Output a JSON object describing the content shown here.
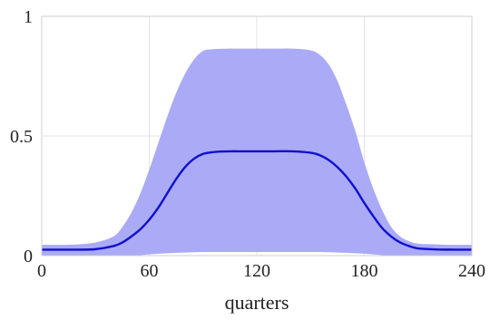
{
  "chart_data": {
    "type": "area",
    "title": "",
    "xlabel": "quarters",
    "ylabel": "",
    "xlim": [
      0,
      240
    ],
    "ylim": [
      0,
      1
    ],
    "x_ticks": [
      "0",
      "60",
      "120",
      "180",
      "240"
    ],
    "y_ticks": [
      "0",
      "0.5",
      "1"
    ],
    "grid": true,
    "colors": {
      "line": "#1010cc",
      "band": "#aaaaf6",
      "grid": "#e3e3e3",
      "axes": "#cfcfcf"
    },
    "x": [
      0,
      10,
      20,
      30,
      40,
      45,
      50,
      55,
      60,
      65,
      70,
      75,
      80,
      85,
      90,
      95,
      100,
      105,
      110,
      120,
      130,
      140,
      150,
      155,
      160,
      165,
      170,
      175,
      180,
      185,
      190,
      195,
      200,
      205,
      210,
      220,
      230,
      240
    ],
    "series": [
      {
        "role": "line",
        "values": [
          0.025,
          0.025,
          0.025,
          0.027,
          0.04,
          0.055,
          0.08,
          0.11,
          0.15,
          0.2,
          0.26,
          0.32,
          0.37,
          0.405,
          0.425,
          0.432,
          0.435,
          0.436,
          0.436,
          0.436,
          0.436,
          0.436,
          0.43,
          0.42,
          0.4,
          0.37,
          0.33,
          0.28,
          0.22,
          0.165,
          0.115,
          0.08,
          0.055,
          0.04,
          0.03,
          0.026,
          0.025,
          0.025
        ]
      },
      {
        "role": "band-upper",
        "values": [
          0.045,
          0.045,
          0.047,
          0.055,
          0.08,
          0.12,
          0.18,
          0.26,
          0.36,
          0.47,
          0.58,
          0.68,
          0.76,
          0.82,
          0.855,
          0.862,
          0.864,
          0.865,
          0.865,
          0.865,
          0.865,
          0.865,
          0.858,
          0.84,
          0.8,
          0.73,
          0.63,
          0.52,
          0.39,
          0.28,
          0.19,
          0.12,
          0.08,
          0.06,
          0.05,
          0.047,
          0.045,
          0.045
        ]
      },
      {
        "role": "band-lower",
        "values": [
          0.0,
          0.0,
          0.0,
          0.0,
          0.0,
          0.0,
          0.0,
          0.002,
          0.005,
          0.008,
          0.01,
          0.012,
          0.013,
          0.014,
          0.015,
          0.015,
          0.015,
          0.015,
          0.015,
          0.015,
          0.015,
          0.015,
          0.015,
          0.015,
          0.014,
          0.013,
          0.012,
          0.01,
          0.008,
          0.005,
          0.002,
          0.0,
          0.0,
          0.0,
          0.0,
          0.0,
          0.0,
          0.0
        ]
      }
    ]
  }
}
